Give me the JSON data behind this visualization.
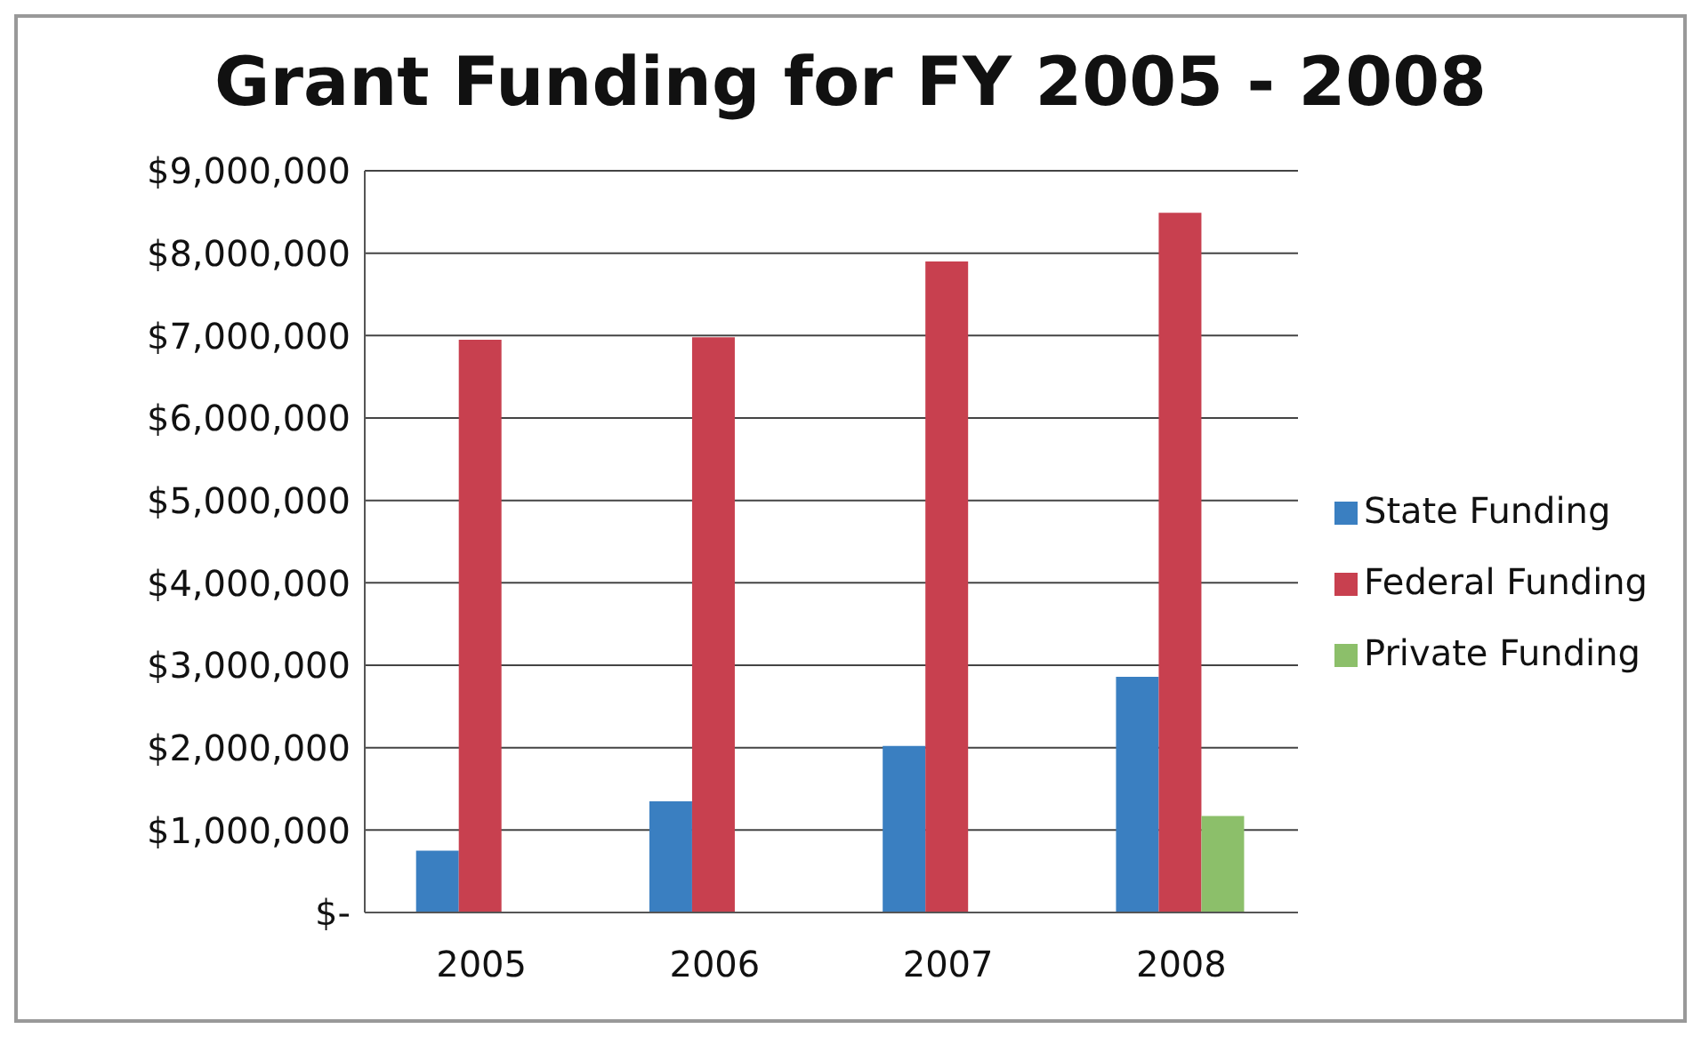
{
  "chart_data": {
    "type": "bar",
    "title": "Grant Funding for FY 2005 - 2008",
    "categories": [
      "2005",
      "2006",
      "2007",
      "2008"
    ],
    "series": [
      {
        "name": "State Funding",
        "color": "#3a7fc1",
        "values": [
          750000,
          1350000,
          2020000,
          2860000
        ]
      },
      {
        "name": "Federal Funding",
        "color": "#c8404f",
        "values": [
          6950000,
          6980000,
          7900000,
          8490000
        ]
      },
      {
        "name": "Private Funding",
        "color": "#8cbf6a",
        "values": [
          null,
          null,
          null,
          1170000
        ]
      }
    ],
    "ylim": [
      0,
      9000000
    ],
    "yticks": [
      {
        "value": 0,
        "label": "$-"
      },
      {
        "value": 1000000,
        "label": "$1,000,000"
      },
      {
        "value": 2000000,
        "label": "$2,000,000"
      },
      {
        "value": 3000000,
        "label": "$3,000,000"
      },
      {
        "value": 4000000,
        "label": "$4,000,000"
      },
      {
        "value": 5000000,
        "label": "$5,000,000"
      },
      {
        "value": 6000000,
        "label": "$6,000,000"
      },
      {
        "value": 7000000,
        "label": "$7,000,000"
      },
      {
        "value": 8000000,
        "label": "$8,000,000"
      },
      {
        "value": 9000000,
        "label": "$9,000,000"
      }
    ],
    "grid": "y",
    "legend": "right"
  }
}
